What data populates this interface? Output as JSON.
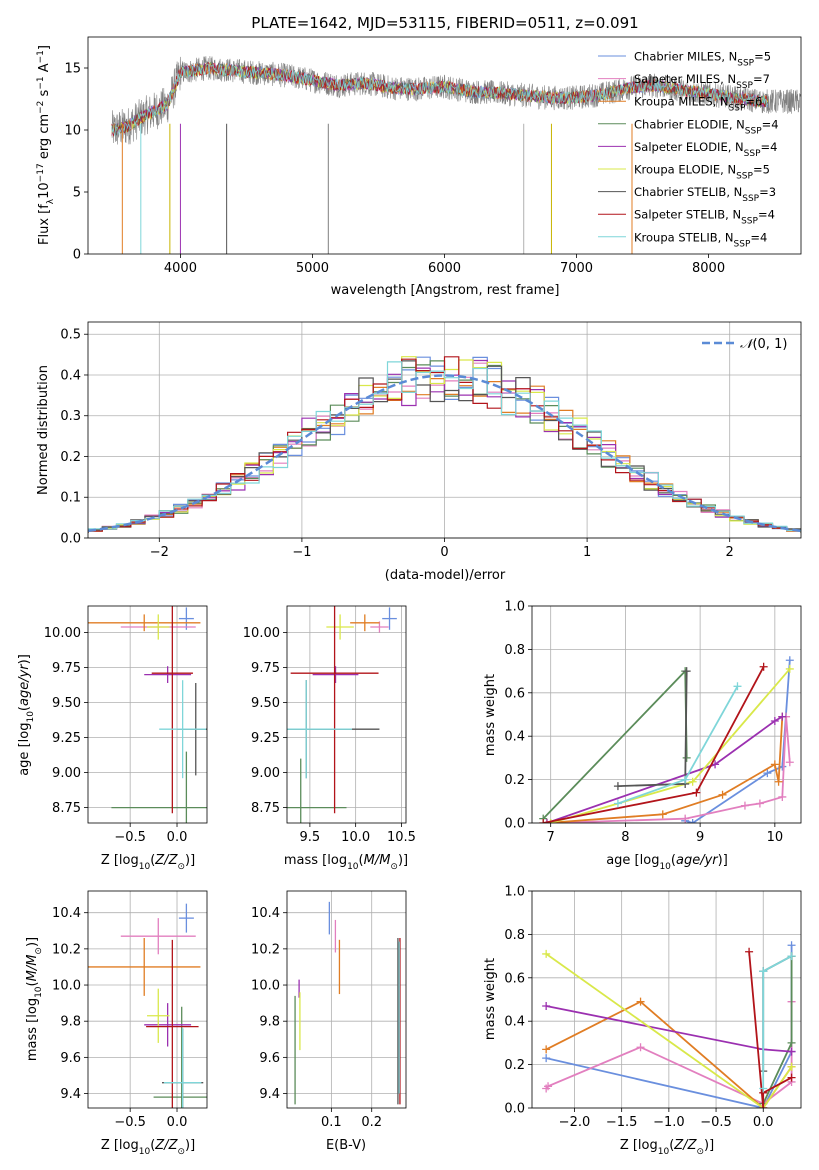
{
  "colors": {
    "chabrier_miles": "#6a8fde",
    "salpeter_miles": "#e27fbf",
    "kroupa_miles": "#e07d24",
    "chabrier_elodie": "#5b8c5a",
    "salpeter_elodie": "#9b30b0",
    "kroupa_elodie": "#d9e84a",
    "chabrier_stelib": "#555555",
    "salpeter_stelib": "#b2141a",
    "kroupa_stelib": "#7fd6d9"
  },
  "chart_data": [
    {
      "id": "spectrum",
      "type": "line",
      "title": "PLATE=1642, MJD=53115, FIBERID=0511, z=0.091",
      "xlabel": "wavelength [Angstrom, rest frame]",
      "ylabel": "Flux [fλ10⁻¹⁷ erg cm⁻² s⁻¹ A⁻¹]",
      "xlim": [
        3300,
        8700
      ],
      "ylim": [
        0,
        17.5
      ],
      "xticks": [
        4000,
        5000,
        6000,
        7000,
        8000
      ],
      "yticks": [
        0,
        5,
        10,
        15
      ],
      "legend_position": "top-right",
      "legend": [
        {
          "key": "chabrier_miles",
          "label": "Chabrier MILES, N",
          "sub": "SSP",
          "tail": "=5"
        },
        {
          "key": "salpeter_miles",
          "label": "Salpeter MILES, N",
          "sub": "SSP",
          "tail": "=7"
        },
        {
          "key": "kroupa_miles",
          "label": "Kroupa MILES, N",
          "sub": "SSP",
          "tail": "=6"
        },
        {
          "key": "chabrier_elodie",
          "label": "Chabrier ELODIE, N",
          "sub": "SSP",
          "tail": "=4"
        },
        {
          "key": "salpeter_elodie",
          "label": "Salpeter ELODIE, N",
          "sub": "SSP",
          "tail": "=4"
        },
        {
          "key": "kroupa_elodie",
          "label": "Kroupa ELODIE, N",
          "sub": "SSP",
          "tail": "=5"
        },
        {
          "key": "chabrier_stelib",
          "label": "Chabrier STELIB, N",
          "sub": "SSP",
          "tail": "=3"
        },
        {
          "key": "salpeter_stelib",
          "label": "Salpeter STELIB, N",
          "sub": "SSP",
          "tail": "=4"
        },
        {
          "key": "kroupa_stelib",
          "label": "Kroupa STELIB, N",
          "sub": "SSP",
          "tail": "=4"
        }
      ],
      "data_trend": {
        "x": [
          3500,
          3600,
          3700,
          3800,
          3900,
          4000,
          4100,
          4200,
          4400,
          4600,
          4800,
          5000,
          5200,
          5400,
          5600,
          5800,
          6000,
          6200,
          6400,
          6600,
          6800,
          7000,
          7200,
          7400,
          7600,
          7800,
          8000,
          8200,
          8400
        ],
        "y": [
          10.0,
          10.3,
          11.0,
          11.5,
          12.0,
          14.6,
          14.8,
          15.0,
          14.8,
          14.6,
          14.4,
          14.0,
          13.6,
          13.8,
          13.4,
          13.3,
          13.5,
          13.1,
          13.0,
          12.8,
          12.6,
          12.6,
          12.9,
          13.4,
          13.6,
          13.2,
          12.9,
          12.6,
          12.3
        ]
      },
      "spike_wavelengths": [
        3560,
        3700,
        3920,
        4000,
        4350,
        5120,
        6600,
        6810,
        7420
      ]
    },
    {
      "id": "residuals",
      "type": "histogram",
      "xlabel": "(data-model)/error",
      "ylabel": "Normed distribution",
      "xlim": [
        -2.5,
        2.5
      ],
      "ylim": [
        0,
        0.53
      ],
      "xticks": [
        -2,
        -1,
        0,
        1,
        2
      ],
      "yticks": [
        0.0,
        0.1,
        0.2,
        0.3,
        0.4,
        0.5
      ],
      "legend_position": "top-right",
      "gaussian_label": "N(0,1)",
      "bin_width": 0.1
    },
    {
      "id": "age_vs_Z",
      "type": "scatter",
      "xlabel": "Z [log₁₀(Z/Z⊙)]",
      "ylabel": "age  [log₁₀(age/yr)]",
      "xlim": [
        -0.95,
        0.32
      ],
      "ylim": [
        8.64,
        10.19
      ],
      "xticks": [
        -0.5,
        0.0
      ],
      "yticks": [
        8.75,
        9.0,
        9.25,
        9.5,
        9.75,
        10.0
      ],
      "points": [
        {
          "key": "chabrier_miles",
          "x": 0.1,
          "y": 10.1,
          "ex": 0.08,
          "ey": 0.08
        },
        {
          "key": "salpeter_miles",
          "x": -0.2,
          "y": 10.04,
          "ex": 0.4,
          "ey": 0.04
        },
        {
          "key": "kroupa_miles",
          "x": -0.35,
          "y": 10.07,
          "ex": 0.6,
          "ey": 0.06
        },
        {
          "key": "chabrier_elodie",
          "x": 0.1,
          "y": 8.75,
          "ex": 0.8,
          "ey": 0.4
        },
        {
          "key": "salpeter_elodie",
          "x": -0.1,
          "y": 9.7,
          "ex": 0.25,
          "ey": 0.06
        },
        {
          "key": "kroupa_elodie",
          "x": -0.2,
          "y": 10.04,
          "ex": 0.12,
          "ey": 0.09
        },
        {
          "key": "chabrier_stelib",
          "x": 0.2,
          "y": 9.31,
          "ex": 0.2,
          "ey": 0.33
        },
        {
          "key": "salpeter_stelib",
          "x": -0.05,
          "y": 9.71,
          "ex": 0.22,
          "ey": 1.0
        },
        {
          "key": "kroupa_stelib",
          "x": 0.06,
          "y": 9.31,
          "ex": 0.25,
          "ey": 0.35
        }
      ]
    },
    {
      "id": "age_vs_mass",
      "type": "scatter",
      "xlabel": "mass [log₁₀(M/M⊙)]",
      "ylabel": "",
      "xlim": [
        9.25,
        10.55
      ],
      "ylim": [
        8.64,
        10.19
      ],
      "xticks": [
        9.5,
        10.0,
        10.5
      ],
      "yticks": [
        8.75,
        9.0,
        9.25,
        9.5,
        9.75,
        10.0
      ],
      "points": [
        {
          "key": "chabrier_miles",
          "x": 10.37,
          "y": 10.1,
          "ex": 0.08,
          "ey": 0.08
        },
        {
          "key": "salpeter_miles",
          "x": 10.26,
          "y": 10.04,
          "ex": 0.1,
          "ey": 0.04
        },
        {
          "key": "kroupa_miles",
          "x": 10.1,
          "y": 10.07,
          "ex": 0.16,
          "ey": 0.06
        },
        {
          "key": "chabrier_elodie",
          "x": 9.4,
          "y": 8.75,
          "ex": 0.5,
          "ey": 0.35
        },
        {
          "key": "salpeter_elodie",
          "x": 9.78,
          "y": 9.7,
          "ex": 0.25,
          "ey": 0.06
        },
        {
          "key": "kroupa_elodie",
          "x": 9.83,
          "y": 10.04,
          "ex": 0.15,
          "ey": 0.09
        },
        {
          "key": "chabrier_stelib",
          "x": 9.46,
          "y": 9.31,
          "ex": 0.8,
          "ey": 0.35
        },
        {
          "key": "salpeter_stelib",
          "x": 9.77,
          "y": 9.71,
          "ex": 0.48,
          "ey": 1.0
        },
        {
          "key": "kroupa_stelib",
          "x": 9.46,
          "y": 9.31,
          "ex": 0.5,
          "ey": 0.35
        }
      ]
    },
    {
      "id": "massweight_vs_age",
      "type": "line",
      "xlabel": "age  [log₁₀(age/yr)]",
      "ylabel": "mass weight",
      "xlim": [
        6.75,
        10.35
      ],
      "ylim": [
        0,
        1.0
      ],
      "xticks": [
        7,
        8,
        9,
        10
      ],
      "yticks": [
        0.0,
        0.2,
        0.4,
        0.6,
        0.8,
        1.0
      ],
      "series": [
        {
          "key": "chabrier_miles",
          "x": [
            8.8,
            8.9,
            9.9,
            10.1,
            10.2
          ],
          "y": [
            0.01,
            0.0,
            0.23,
            0.26,
            0.75
          ]
        },
        {
          "key": "salpeter_miles",
          "x": [
            7.0,
            8.8,
            9.6,
            9.8,
            10.1,
            10.15,
            10.2
          ],
          "y": [
            0.0,
            0.02,
            0.08,
            0.09,
            0.12,
            0.49,
            0.28
          ]
        },
        {
          "key": "kroupa_miles",
          "x": [
            6.95,
            8.5,
            9.3,
            10.0,
            10.05,
            10.1
          ],
          "y": [
            0.0,
            0.04,
            0.13,
            0.27,
            0.19,
            0.49
          ]
        },
        {
          "key": "chabrier_elodie",
          "x": [
            6.9,
            8.8,
            8.82
          ],
          "y": [
            0.02,
            0.7,
            0.3
          ]
        },
        {
          "key": "salpeter_elodie",
          "x": [
            6.95,
            9.2,
            10.0,
            10.1
          ],
          "y": [
            0.0,
            0.27,
            0.47,
            0.49
          ]
        },
        {
          "key": "kroupa_elodie",
          "x": [
            7.0,
            8.9,
            10.2
          ],
          "y": [
            0.0,
            0.19,
            0.71
          ]
        },
        {
          "key": "chabrier_stelib",
          "x": [
            7.9,
            8.8,
            8.82
          ],
          "y": [
            0.17,
            0.18,
            0.7
          ]
        },
        {
          "key": "salpeter_stelib",
          "x": [
            6.9,
            8.95,
            9.85
          ],
          "y": [
            0.0,
            0.14,
            0.72
          ]
        },
        {
          "key": "kroupa_stelib",
          "x": [
            7.9,
            8.8,
            9.5
          ],
          "y": [
            0.09,
            0.2,
            0.63
          ]
        }
      ]
    },
    {
      "id": "mass_vs_Z",
      "type": "scatter",
      "xlabel": "Z [log₁₀(Z/Z⊙)]",
      "ylabel": "mass [log₁₀(M/M⊙)]",
      "xlim": [
        -0.95,
        0.32
      ],
      "ylim": [
        9.32,
        10.52
      ],
      "xticks": [
        -0.5,
        0.0
      ],
      "yticks": [
        9.4,
        9.6,
        9.8,
        10.0,
        10.2,
        10.4
      ],
      "points": [
        {
          "key": "chabrier_miles",
          "x": 0.1,
          "y": 10.37,
          "ex": 0.08,
          "ey": 0.08
        },
        {
          "key": "salpeter_miles",
          "x": -0.2,
          "y": 10.27,
          "ex": 0.4,
          "ey": 0.1
        },
        {
          "key": "kroupa_miles",
          "x": -0.35,
          "y": 10.1,
          "ex": 0.6,
          "ey": 0.16
        },
        {
          "key": "chabrier_elodie",
          "x": 0.05,
          "y": 9.38,
          "ex": 0.3,
          "ey": 0.5
        },
        {
          "key": "salpeter_elodie",
          "x": -0.1,
          "y": 9.78,
          "ex": 0.25,
          "ey": 0.12
        },
        {
          "key": "kroupa_elodie",
          "x": -0.2,
          "y": 9.83,
          "ex": 0.12,
          "ey": 0.15
        },
        {
          "key": "chabrier_stelib",
          "x": 0.06,
          "y": 9.46,
          "ex": 0.22,
          "ey": 0.3
        },
        {
          "key": "salpeter_stelib",
          "x": -0.05,
          "y": 9.77,
          "ex": 0.28,
          "ey": 0.48
        },
        {
          "key": "kroupa_stelib",
          "x": 0.06,
          "y": 9.46,
          "ex": 0.2,
          "ey": 0.3
        }
      ]
    },
    {
      "id": "mass_vs_EBV",
      "type": "scatter",
      "xlabel": "E(B-V)",
      "ylabel": "",
      "xlim": [
        -0.01,
        0.285
      ],
      "ylim": [
        9.32,
        10.52
      ],
      "xticks": [
        0.1,
        0.2
      ],
      "yticks": [
        9.4,
        9.6,
        9.8,
        10.0,
        10.2,
        10.4
      ],
      "points": [
        {
          "key": "chabrier_miles",
          "x": 0.095,
          "y": 10.37,
          "ex": 0.0,
          "ey": 0.09
        },
        {
          "key": "salpeter_miles",
          "x": 0.11,
          "y": 10.27,
          "ex": 0.0,
          "ey": 0.09
        },
        {
          "key": "kroupa_miles",
          "x": 0.12,
          "y": 10.1,
          "ex": 0.0,
          "ey": 0.15
        },
        {
          "key": "chabrier_elodie",
          "x": 0.01,
          "y": 9.64,
          "ex": 0.0,
          "ey": 0.3
        },
        {
          "key": "salpeter_elodie",
          "x": 0.02,
          "y": 9.98,
          "ex": 0.0,
          "ey": 0.05
        },
        {
          "key": "kroupa_elodie",
          "x": 0.022,
          "y": 9.8,
          "ex": 0.0,
          "ey": 0.16
        },
        {
          "key": "chabrier_stelib",
          "x": 0.265,
          "y": 9.8,
          "ex": 0.0,
          "ey": 0.46
        },
        {
          "key": "salpeter_stelib",
          "x": 0.27,
          "y": 9.8,
          "ex": 0.0,
          "ey": 0.46
        },
        {
          "key": "kroupa_stelib",
          "x": 0.268,
          "y": 9.82,
          "ex": 0.0,
          "ey": 0.42
        }
      ]
    },
    {
      "id": "massweight_vs_Z",
      "type": "line",
      "xlabel": "Z [log₁₀(Z/Z⊙)]",
      "ylabel": "mass weight",
      "xlim": [
        -2.45,
        0.4
      ],
      "ylim": [
        0,
        1.0
      ],
      "xticks": [
        -2.0,
        -1.5,
        -1.0,
        -0.5,
        0.0
      ],
      "yticks": [
        0.0,
        0.2,
        0.4,
        0.6,
        0.8,
        1.0
      ],
      "series": [
        {
          "key": "chabrier_miles",
          "x": [
            -2.3,
            0.0,
            0.3,
            0.3
          ],
          "y": [
            0.23,
            0.0,
            0.26,
            0.75
          ]
        },
        {
          "key": "salpeter_miles",
          "x": [
            -2.3,
            -2.28,
            -1.3,
            0.0,
            0.3,
            0.3
          ],
          "y": [
            0.09,
            0.1,
            0.28,
            0.02,
            0.12,
            0.49
          ]
        },
        {
          "key": "kroupa_miles",
          "x": [
            -2.3,
            -1.3,
            0.0,
            0.3
          ],
          "y": [
            0.27,
            0.49,
            0.0,
            0.19
          ]
        },
        {
          "key": "chabrier_elodie",
          "x": [
            0.0,
            0.3,
            0.3
          ],
          "y": [
            0.02,
            0.3,
            0.7
          ]
        },
        {
          "key": "salpeter_elodie",
          "x": [
            -2.3,
            0.0,
            0.3
          ],
          "y": [
            0.47,
            0.27,
            0.26
          ]
        },
        {
          "key": "kroupa_elodie",
          "x": [
            -2.3,
            0.0,
            0.3
          ],
          "y": [
            0.71,
            0.0,
            0.19
          ]
        },
        {
          "key": "chabrier_stelib",
          "x": [
            0.0,
            0.0,
            0.3
          ],
          "y": [
            0.17,
            0.63,
            0.7
          ]
        },
        {
          "key": "salpeter_stelib",
          "x": [
            -0.15,
            0.0,
            0.0,
            0.3
          ],
          "y": [
            0.72,
            0.0,
            0.07,
            0.14
          ]
        },
        {
          "key": "kroupa_stelib",
          "x": [
            0.0,
            0.0,
            0.3
          ],
          "y": [
            0.09,
            0.63,
            0.7
          ]
        }
      ]
    }
  ]
}
